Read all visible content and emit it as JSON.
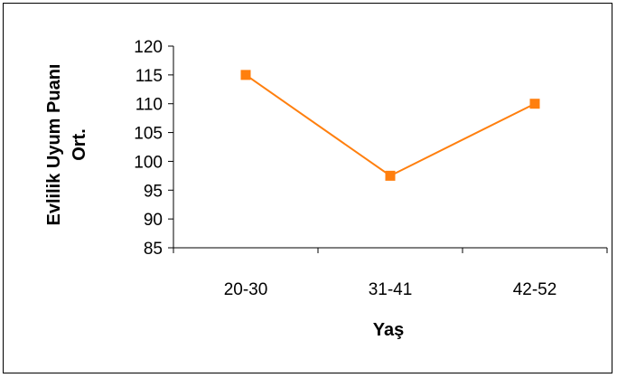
{
  "chart_data": {
    "type": "line",
    "categories": [
      "20-30",
      "31-41",
      "42-52"
    ],
    "series": [
      {
        "values": [
          115,
          97.5,
          110
        ]
      }
    ],
    "title": "",
    "xlabel": "Yaş",
    "ylabel": [
      "Evlilik Uyum Puanı",
      "Ort."
    ],
    "ylim": [
      85,
      120
    ],
    "yticks": [
      85,
      90,
      95,
      100,
      105,
      110,
      115,
      120
    ],
    "grid": false,
    "legend": "none",
    "colors": {
      "line": "#FF7F0E",
      "marker": "#FF7F0E",
      "axis": "#000000"
    }
  }
}
